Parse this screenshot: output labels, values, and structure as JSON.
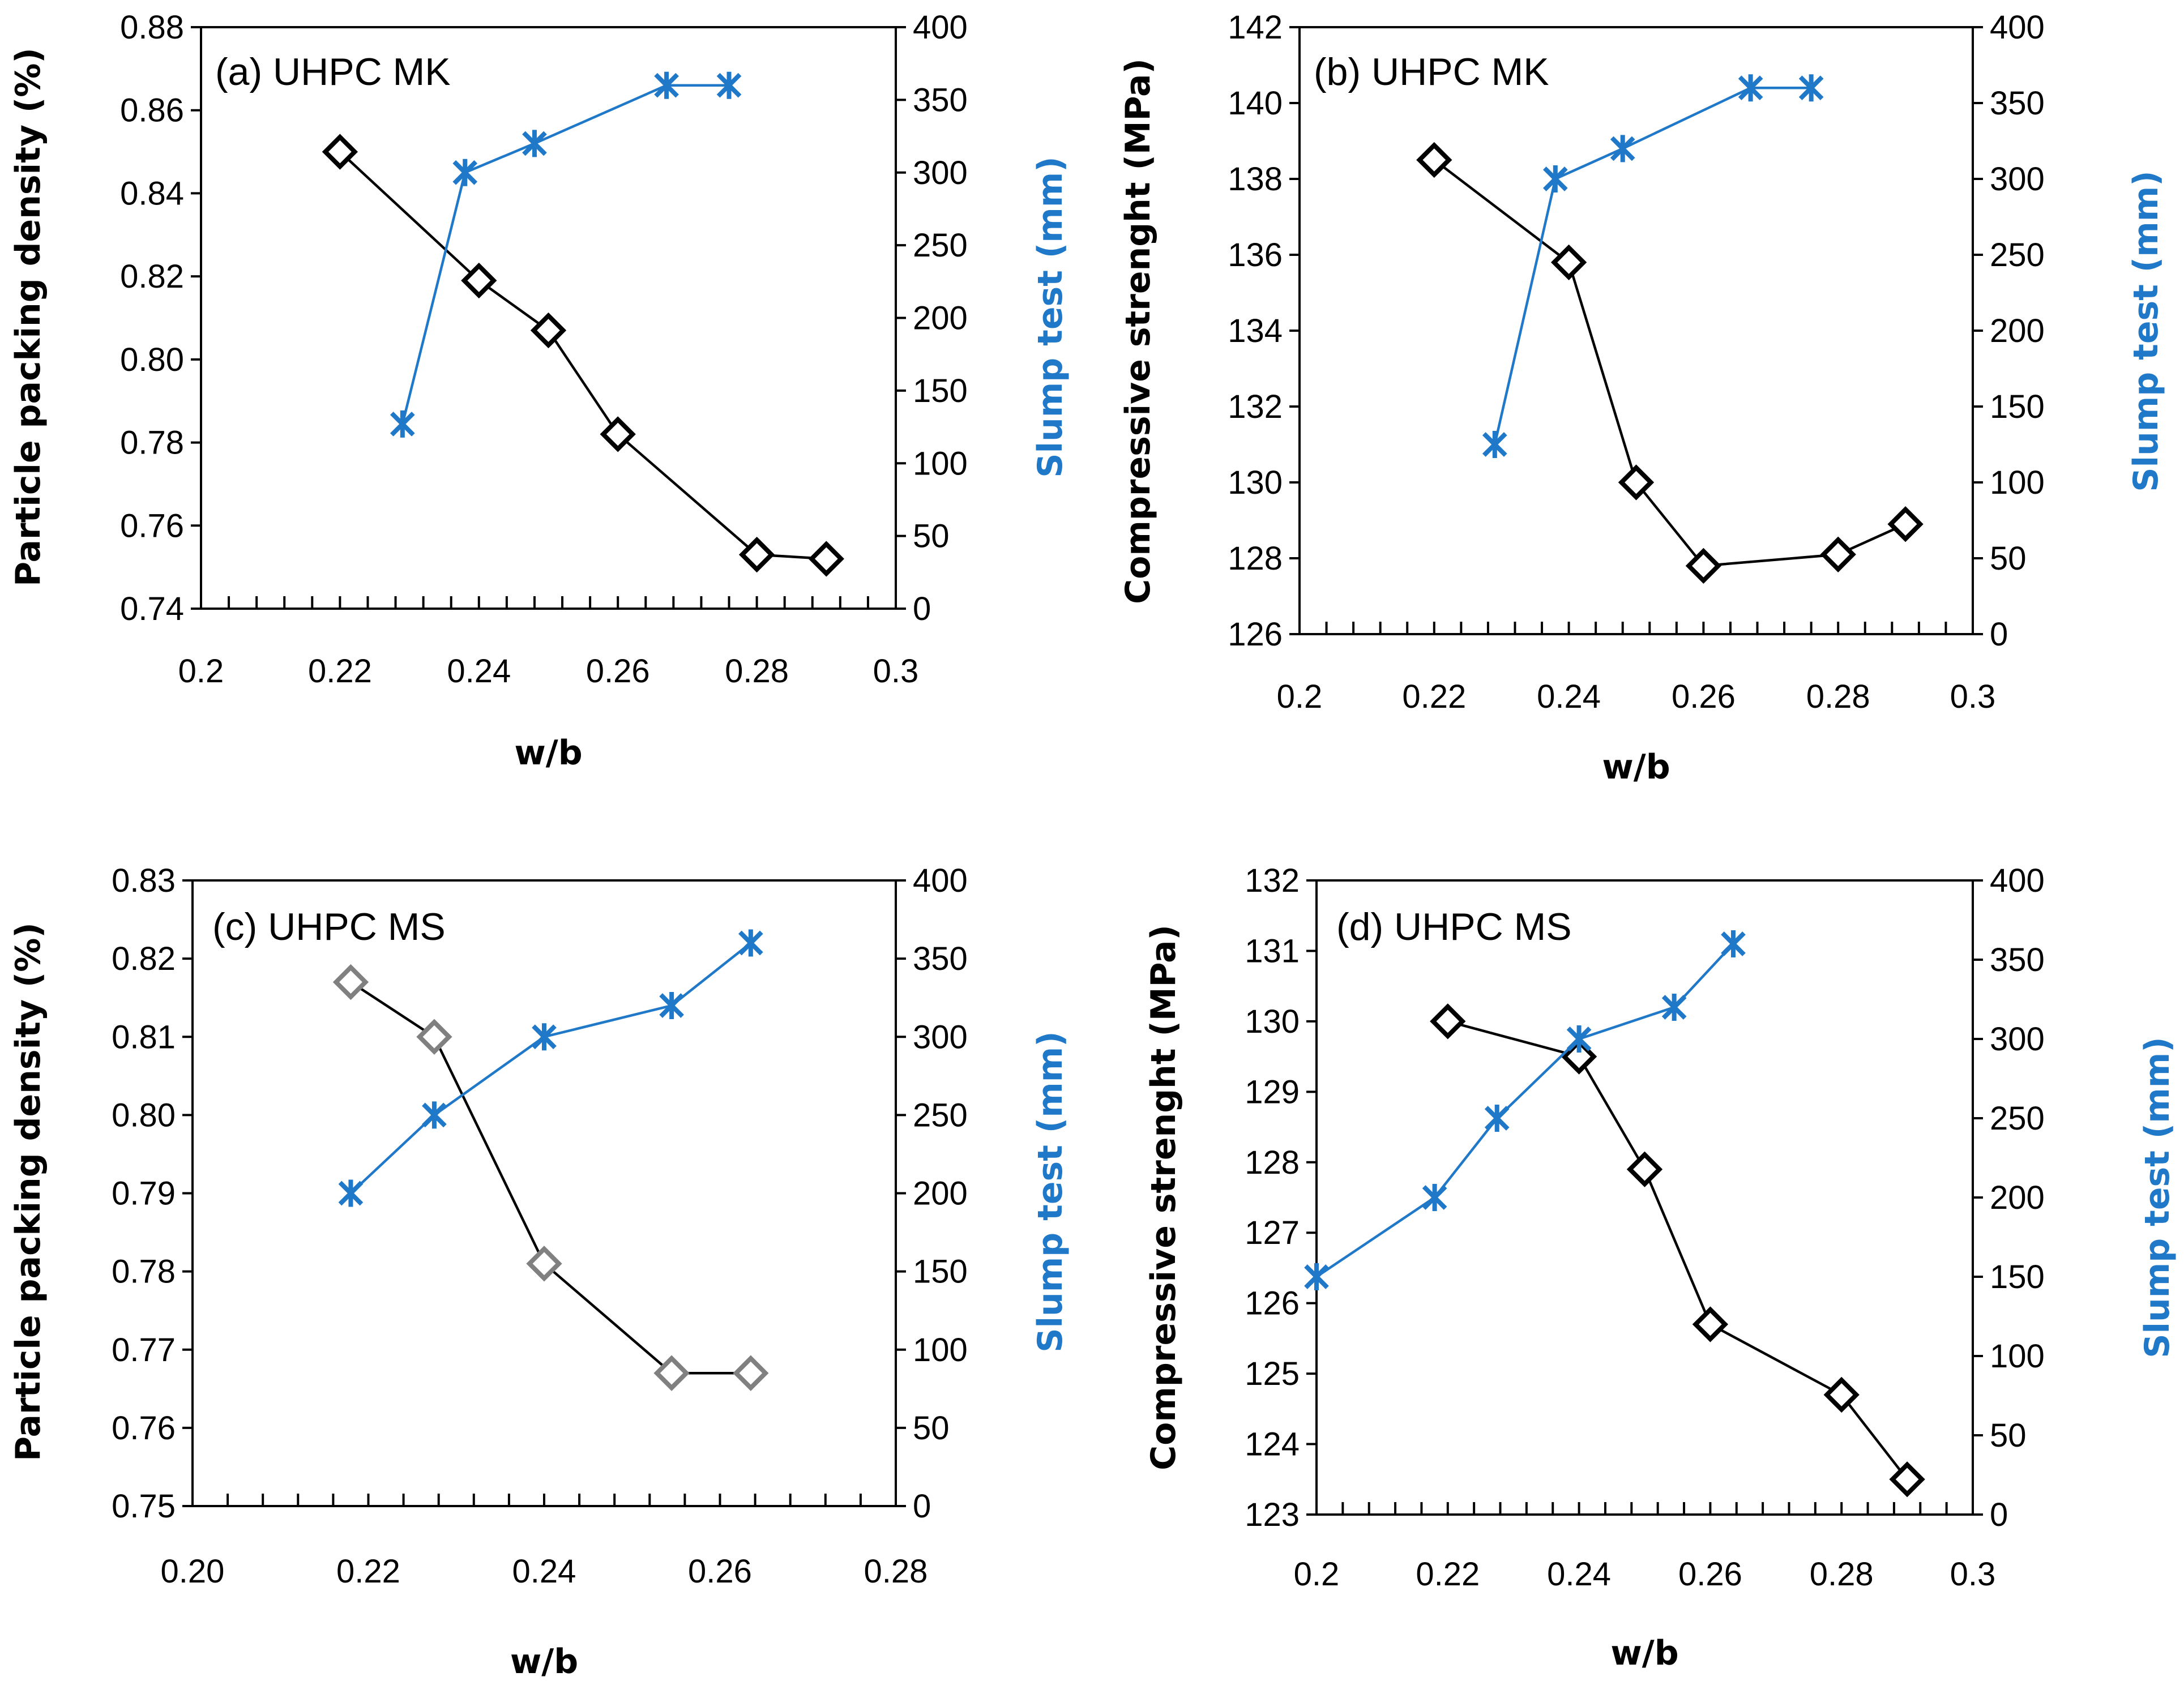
{
  "colors": {
    "primary_series": "#000000",
    "primary_series_grey": "#808080",
    "secondary_series": "#1f78c8"
  },
  "chart_data": [
    {
      "type": "line",
      "title": "(a) UHPC MK",
      "xlabel": "w/b",
      "ylabel": "Particle packing density (%)",
      "y2label": "Slump test (mm)",
      "xlim": [
        0.2,
        0.3
      ],
      "xticks": [
        "0.2",
        "0.22",
        "0.24",
        "0.26",
        "0.28",
        "0.3"
      ],
      "ylim": [
        0.74,
        0.88
      ],
      "yticks": [
        "0.74",
        "0.76",
        "0.78",
        "0.80",
        "0.82",
        "0.84",
        "0.86",
        "0.88"
      ],
      "y2lim": [
        0,
        400
      ],
      "y2ticks": [
        "0",
        "50",
        "100",
        "150",
        "200",
        "250",
        "300",
        "350",
        "400"
      ],
      "series": [
        {
          "name": "Particle packing density",
          "axis": "left",
          "marker": "diamond",
          "color": "#000000",
          "x": [
            0.22,
            0.24,
            0.25,
            0.26,
            0.28,
            0.29
          ],
          "y": [
            0.85,
            0.819,
            0.807,
            0.782,
            0.753,
            0.752
          ]
        },
        {
          "name": "Slump test",
          "axis": "right",
          "marker": "asterisk",
          "color": "#1f78c8",
          "x": [
            0.229,
            0.238,
            0.248,
            0.267,
            0.276
          ],
          "y": [
            127,
            300,
            320,
            360,
            360
          ]
        }
      ]
    },
    {
      "type": "line",
      "title": "(b) UHPC MK",
      "xlabel": "w/b",
      "ylabel": "Compressive strenght (MPa)",
      "y2label": "Slump test (mm)",
      "xlim": [
        0.2,
        0.3
      ],
      "xticks": [
        "0.2",
        "0.22",
        "0.24",
        "0.26",
        "0.28",
        "0.3"
      ],
      "ylim": [
        126,
        142
      ],
      "yticks": [
        "126",
        "128",
        "130",
        "132",
        "134",
        "136",
        "138",
        "140",
        "142"
      ],
      "y2lim": [
        0,
        400
      ],
      "y2ticks": [
        "0",
        "50",
        "100",
        "150",
        "200",
        "250",
        "300",
        "350",
        "400"
      ],
      "series": [
        {
          "name": "Compressive strength",
          "axis": "left",
          "marker": "diamond",
          "color": "#000000",
          "x": [
            0.22,
            0.24,
            0.25,
            0.26,
            0.28,
            0.29
          ],
          "y": [
            138.5,
            135.8,
            130.0,
            127.8,
            128.1,
            128.9
          ]
        },
        {
          "name": "Slump test",
          "axis": "right",
          "marker": "asterisk",
          "color": "#1f78c8",
          "x": [
            0.229,
            0.238,
            0.248,
            0.267,
            0.276
          ],
          "y": [
            125,
            300,
            320,
            360,
            360
          ]
        }
      ]
    },
    {
      "type": "line",
      "title": "(c) UHPC MS",
      "xlabel": "w/b",
      "ylabel": "Particle packing density (%)",
      "y2label": "Slump test (mm)",
      "xlim": [
        0.2,
        0.28
      ],
      "xticks": [
        "0.20",
        "0.22",
        "0.24",
        "0.26",
        "0.28"
      ],
      "ylim": [
        0.75,
        0.83
      ],
      "yticks": [
        "0.75",
        "0.76",
        "0.77",
        "0.78",
        "0.79",
        "0.80",
        "0.81",
        "0.82",
        "0.83"
      ],
      "y2lim": [
        0,
        400
      ],
      "y2ticks": [
        "0",
        "50",
        "100",
        "150",
        "200",
        "250",
        "300",
        "350",
        "400"
      ],
      "series": [
        {
          "name": "Particle packing density",
          "axis": "left",
          "marker": "diamond",
          "color": "#808080",
          "x": [
            0.218,
            0.2275,
            0.24,
            0.2545,
            0.2635
          ],
          "y": [
            0.817,
            0.81,
            0.781,
            0.767,
            0.767
          ]
        },
        {
          "name": "Slump test",
          "axis": "right",
          "marker": "asterisk",
          "color": "#1f78c8",
          "x": [
            0.218,
            0.2275,
            0.24,
            0.2545,
            0.2635
          ],
          "y": [
            200,
            250,
            300,
            320,
            360
          ]
        }
      ]
    },
    {
      "type": "line",
      "title": "(d) UHPC MS",
      "xlabel": "w/b",
      "ylabel": "Compressive  strenght  (MPa)",
      "y2label": "Slump test  (mm)",
      "xlim": [
        0.2,
        0.3
      ],
      "xticks": [
        "0.2",
        "0.22",
        "0.24",
        "0.26",
        "0.28",
        "0.3"
      ],
      "ylim": [
        123,
        132
      ],
      "yticks": [
        "123",
        "124",
        "125",
        "126",
        "127",
        "128",
        "129",
        "130",
        "131",
        "132"
      ],
      "y2lim": [
        0,
        400
      ],
      "y2ticks": [
        "0",
        "50",
        "100",
        "150",
        "200",
        "250",
        "300",
        "350",
        "400"
      ],
      "series": [
        {
          "name": "Compressive strength",
          "axis": "left",
          "marker": "diamond",
          "color": "#000000",
          "x": [
            0.22,
            0.24,
            0.25,
            0.26,
            0.28,
            0.29
          ],
          "y": [
            130.0,
            129.5,
            127.9,
            125.7,
            124.7,
            123.5
          ]
        },
        {
          "name": "Slump test",
          "axis": "right",
          "marker": "asterisk",
          "color": "#1f78c8",
          "x": [
            0.2,
            0.218,
            0.2275,
            0.24,
            0.2545,
            0.2635
          ],
          "y": [
            150,
            200,
            250,
            300,
            320,
            360
          ]
        }
      ]
    }
  ]
}
